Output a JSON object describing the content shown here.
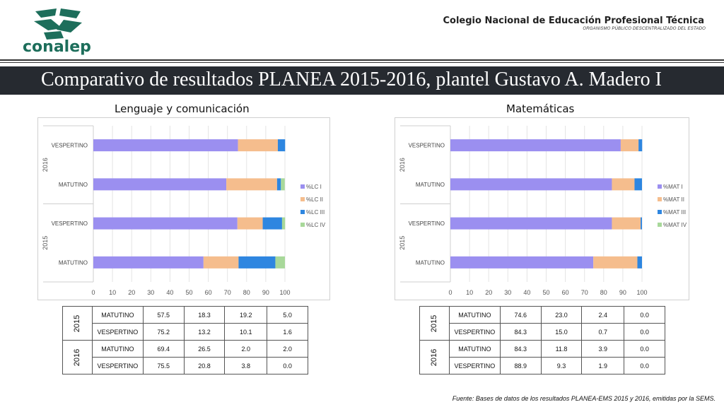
{
  "header": {
    "logo_text": "conalep",
    "institution": "Colegio Nacional de Educación Profesional Técnica",
    "institution_sub": "ORGANISMO PÚBLICO DESCENTRALIZADO DEL ESTADO"
  },
  "main_title": "Comparativo de resultados PLANEA 2015-2016, plantel Gustavo A. Madero I",
  "source": "Fuente: Bases de datos de los resultados PLANEA-EMS 2015 y 2016, emitidas por la SEMS.",
  "colors": {
    "s1": "#9b8ff0",
    "s2": "#f5bd8d",
    "s3": "#2e86e0",
    "s4": "#a8d89a"
  },
  "chart_data": [
    {
      "type": "bar",
      "orientation": "horizontal",
      "stacked": true,
      "title": "Lenguaje y comunicación",
      "groups": [
        "2016",
        "2015"
      ],
      "categories": [
        "VESPERTINO",
        "MATUTINO",
        "VESPERTINO",
        "MATUTINO"
      ],
      "category_groups": [
        "2016",
        "2016",
        "2015",
        "2015"
      ],
      "series": [
        {
          "name": "%LC I",
          "values": [
            75.5,
            69.4,
            75.2,
            57.5
          ]
        },
        {
          "name": "%LC II",
          "values": [
            20.8,
            26.5,
            13.2,
            18.3
          ]
        },
        {
          "name": "%LC III",
          "values": [
            3.8,
            2.0,
            10.1,
            19.2
          ]
        },
        {
          "name": "%LC IV",
          "values": [
            0.0,
            2.0,
            1.6,
            5.0
          ]
        }
      ],
      "xticks": [
        "0",
        "10",
        "20",
        "30",
        "40",
        "50",
        "60",
        "70",
        "80",
        "90",
        "100"
      ],
      "xlim": [
        0,
        100
      ],
      "legend": "right",
      "grid": true
    },
    {
      "type": "bar",
      "orientation": "horizontal",
      "stacked": true,
      "title": "Matemáticas",
      "groups": [
        "2016",
        "2015"
      ],
      "categories": [
        "VESPERTINO",
        "MATUTINO",
        "VESPERTINO",
        "MATUTINO"
      ],
      "category_groups": [
        "2016",
        "2016",
        "2015",
        "2015"
      ],
      "series": [
        {
          "name": "%MAT I",
          "values": [
            88.9,
            84.3,
            84.3,
            74.6
          ]
        },
        {
          "name": "%MAT II",
          "values": [
            9.3,
            11.8,
            15.0,
            23.0
          ]
        },
        {
          "name": "%MAT III",
          "values": [
            1.9,
            3.9,
            0.7,
            2.4
          ]
        },
        {
          "name": "%MAT IV",
          "values": [
            0.0,
            0.0,
            0.0,
            0.0
          ]
        }
      ],
      "xticks": [
        "0",
        "10",
        "20",
        "30",
        "40",
        "50",
        "60",
        "70",
        "80",
        "90",
        "100"
      ],
      "xlim": [
        0,
        100
      ],
      "legend": "right",
      "grid": true
    }
  ],
  "tables": [
    {
      "rows": [
        {
          "year": "2015",
          "shift": "MATUTINO",
          "v": [
            "57.5",
            "18.3",
            "19.2",
            "5.0"
          ]
        },
        {
          "year": "",
          "shift": "VESPERTINO",
          "v": [
            "75.2",
            "13.2",
            "10.1",
            "1.6"
          ]
        },
        {
          "year": "2016",
          "shift": "MATUTINO",
          "v": [
            "69.4",
            "26.5",
            "2.0",
            "2.0"
          ]
        },
        {
          "year": "",
          "shift": "VESPERTINO",
          "v": [
            "75.5",
            "20.8",
            "3.8",
            "0.0"
          ]
        }
      ]
    },
    {
      "rows": [
        {
          "year": "2015",
          "shift": "MATUTINO",
          "v": [
            "74.6",
            "23.0",
            "2.4",
            "0.0"
          ]
        },
        {
          "year": "",
          "shift": "VESPERTINO",
          "v": [
            "84.3",
            "15.0",
            "0.7",
            "0.0"
          ]
        },
        {
          "year": "2016",
          "shift": "MATUTINO",
          "v": [
            "84.3",
            "11.8",
            "3.9",
            "0.0"
          ]
        },
        {
          "year": "",
          "shift": "VESPERTINO",
          "v": [
            "88.9",
            "9.3",
            "1.9",
            "0.0"
          ]
        }
      ]
    }
  ]
}
